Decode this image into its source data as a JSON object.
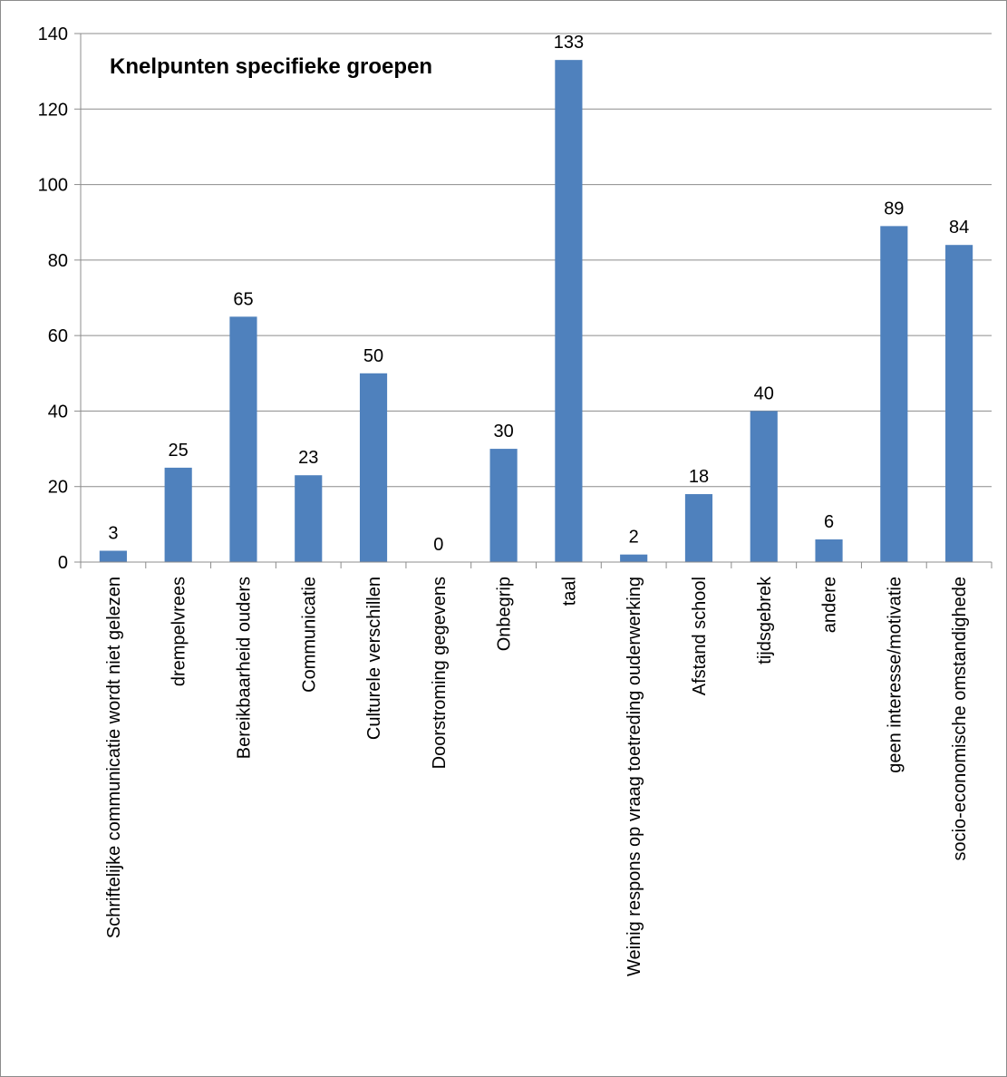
{
  "chart_data": {
    "type": "bar",
    "title": "Knelpunten specifieke groepen",
    "xlabel": "",
    "ylabel": "",
    "ylim": [
      0,
      140
    ],
    "yticks": [
      0,
      20,
      40,
      60,
      80,
      100,
      120,
      140
    ],
    "grid": true,
    "legend": "none",
    "bar_color": "#4f81bd",
    "grid_color": "#8c8c8c",
    "categories": [
      "Schriftelijke communicatie wordt niet gelezen",
      "drempelvrees",
      "Bereikbaarheid ouders",
      "Communicatie",
      "Culturele verschillen",
      "Doorstroming gegevens",
      "Onbegrip",
      "taal",
      "Weinig respons op vraag toetreding ouderwerking",
      "Afstand school",
      "tijdsgebrek",
      "andere",
      "geen interesse/motivatie",
      "socio-economische omstandighede"
    ],
    "values": [
      3,
      25,
      65,
      23,
      50,
      0,
      30,
      133,
      2,
      18,
      40,
      6,
      89,
      84
    ]
  }
}
